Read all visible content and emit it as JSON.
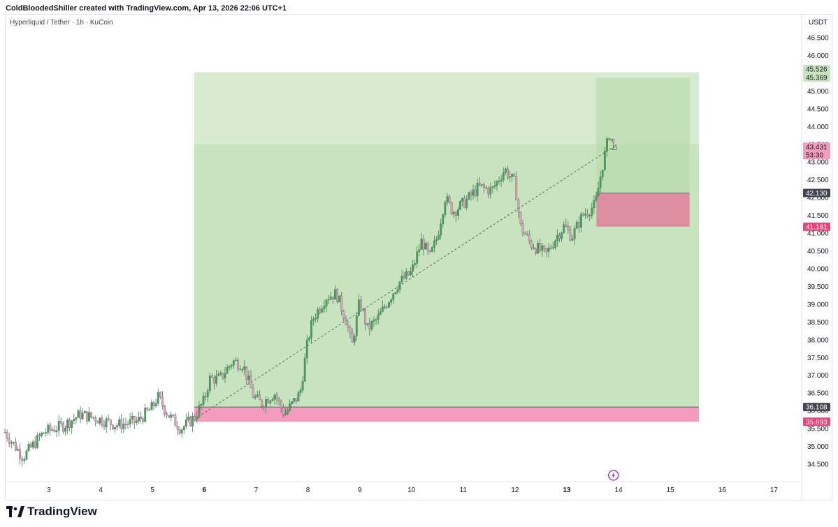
{
  "header": {
    "credit": "ColdBloodedShiller created with TradingView.com, Apr 13, 2026 22:06 UTC+1"
  },
  "symbol": {
    "title": "Hyperliquid / Tether · 1h · KuCoin"
  },
  "footer": {
    "brand": "TradingView"
  },
  "colors": {
    "up": "#4e9a62",
    "down": "#e3a2b8",
    "profit_zone": "#c8e4bf",
    "profit_zone_light": "#d7ebd1",
    "loss_zone": "#f39cbb",
    "loss_zone_2": "#dd8f9f",
    "text": "#131722"
  },
  "chart_data": {
    "type": "candlestick",
    "currency": "USDT",
    "ylim": [
      34.0,
      47.0
    ],
    "y_ticks": [
      "34.500",
      "35.000",
      "35.500",
      "36.000",
      "36.500",
      "37.000",
      "37.500",
      "38.000",
      "38.500",
      "39.000",
      "39.500",
      "40.000",
      "40.500",
      "41.000",
      "41.500",
      "42.000",
      "42.500",
      "43.000",
      "43.500",
      "44.000",
      "44.500",
      "45.000",
      "45.500",
      "46.000",
      "46.500"
    ],
    "x_ticks": [
      {
        "label": "3",
        "day": 3,
        "bold": false
      },
      {
        "label": "4",
        "day": 4,
        "bold": false
      },
      {
        "label": "5",
        "day": 5,
        "bold": false
      },
      {
        "label": "6",
        "day": 6,
        "bold": true
      },
      {
        "label": "7",
        "day": 7,
        "bold": false
      },
      {
        "label": "8",
        "day": 8,
        "bold": false
      },
      {
        "label": "9",
        "day": 9,
        "bold": false
      },
      {
        "label": "10",
        "day": 10,
        "bold": false
      },
      {
        "label": "11",
        "day": 11,
        "bold": false
      },
      {
        "label": "12",
        "day": 12,
        "bold": false
      },
      {
        "label": "13",
        "day": 13,
        "bold": true
      },
      {
        "label": "14",
        "day": 14,
        "bold": false
      },
      {
        "label": "15",
        "day": 15,
        "bold": false
      },
      {
        "label": "16",
        "day": 16,
        "bold": false
      },
      {
        "label": "17",
        "day": 17,
        "bold": false
      }
    ],
    "price_path": [
      [
        2.15,
        35.4
      ],
      [
        2.5,
        34.7
      ],
      [
        2.9,
        35.4
      ],
      [
        3.3,
        35.6
      ],
      [
        3.6,
        35.9
      ],
      [
        3.9,
        35.8
      ],
      [
        4.3,
        35.6
      ],
      [
        4.7,
        35.7
      ],
      [
        5.0,
        36.1
      ],
      [
        5.1,
        36.4
      ],
      [
        5.3,
        35.9
      ],
      [
        5.55,
        35.5
      ],
      [
        5.8,
        35.8
      ],
      [
        6.0,
        36.3
      ],
      [
        6.1,
        36.9
      ],
      [
        6.3,
        36.9
      ],
      [
        6.55,
        37.4
      ],
      [
        6.75,
        37.3
      ],
      [
        6.95,
        36.4
      ],
      [
        7.1,
        36.2
      ],
      [
        7.35,
        36.5
      ],
      [
        7.55,
        35.9
      ],
      [
        7.85,
        36.5
      ],
      [
        8.0,
        38.0
      ],
      [
        8.1,
        38.6
      ],
      [
        8.35,
        39.2
      ],
      [
        8.55,
        39.3
      ],
      [
        8.75,
        38.5
      ],
      [
        8.85,
        37.8
      ],
      [
        9.0,
        39.1
      ],
      [
        9.15,
        38.3
      ],
      [
        9.35,
        38.6
      ],
      [
        9.55,
        39.1
      ],
      [
        9.75,
        39.6
      ],
      [
        10.0,
        39.9
      ],
      [
        10.2,
        40.8
      ],
      [
        10.35,
        40.3
      ],
      [
        10.5,
        40.9
      ],
      [
        10.65,
        42.0
      ],
      [
        10.8,
        41.6
      ],
      [
        11.05,
        41.9
      ],
      [
        11.3,
        42.3
      ],
      [
        11.55,
        42.2
      ],
      [
        11.8,
        42.8
      ],
      [
        12.0,
        42.4
      ],
      [
        12.1,
        41.2
      ],
      [
        12.3,
        40.7
      ],
      [
        12.6,
        40.4
      ],
      [
        12.8,
        40.9
      ],
      [
        12.95,
        41.2
      ],
      [
        13.1,
        40.9
      ],
      [
        13.3,
        41.5
      ],
      [
        13.55,
        41.8
      ],
      [
        13.7,
        43.0
      ],
      [
        13.82,
        43.8
      ],
      [
        13.92,
        43.4
      ]
    ],
    "trend_line": {
      "from": [
        5.95,
        35.9
      ],
      "to": [
        13.92,
        43.45
      ]
    },
    "positions": [
      {
        "name": "long-position-large",
        "x_from": 5.9,
        "x_to": 15.55,
        "entry": 36.108,
        "stop": 35.693,
        "target": 45.526,
        "inner_target": 43.5,
        "stop_tag": "35.693",
        "entry_tag": "36.108"
      },
      {
        "name": "long-position-small",
        "x_from": 13.57,
        "x_to": 15.37,
        "entry": 42.13,
        "stop": 41.181,
        "target": 45.369,
        "stop_tag": "41.181",
        "entry_tag": "42.130"
      }
    ],
    "price_tags": [
      {
        "value": 45.526,
        "label": "45.526",
        "bg": "#c8e4bf",
        "fg": "#131722"
      },
      {
        "value": 45.369,
        "label": "45.369",
        "bg": "#c8e4bf",
        "fg": "#131722"
      },
      {
        "value": 43.431,
        "label": "43.431",
        "sub": "53:30",
        "bg": "#f39cbb",
        "fg": "#131722"
      },
      {
        "value": 42.13,
        "label": "42.130",
        "bg": "#434651",
        "fg": "#ffffff"
      },
      {
        "value": 41.181,
        "label": "41.181",
        "bg": "#e8457b",
        "fg": "#ffffff"
      },
      {
        "value": 36.108,
        "label": "36.108",
        "bg": "#434651",
        "fg": "#ffffff"
      },
      {
        "value": 35.693,
        "label": "35.693",
        "bg": "#e8457b",
        "fg": "#ffffff"
      }
    ],
    "event_icon": "lightning-icon",
    "event_day": 13.9
  }
}
